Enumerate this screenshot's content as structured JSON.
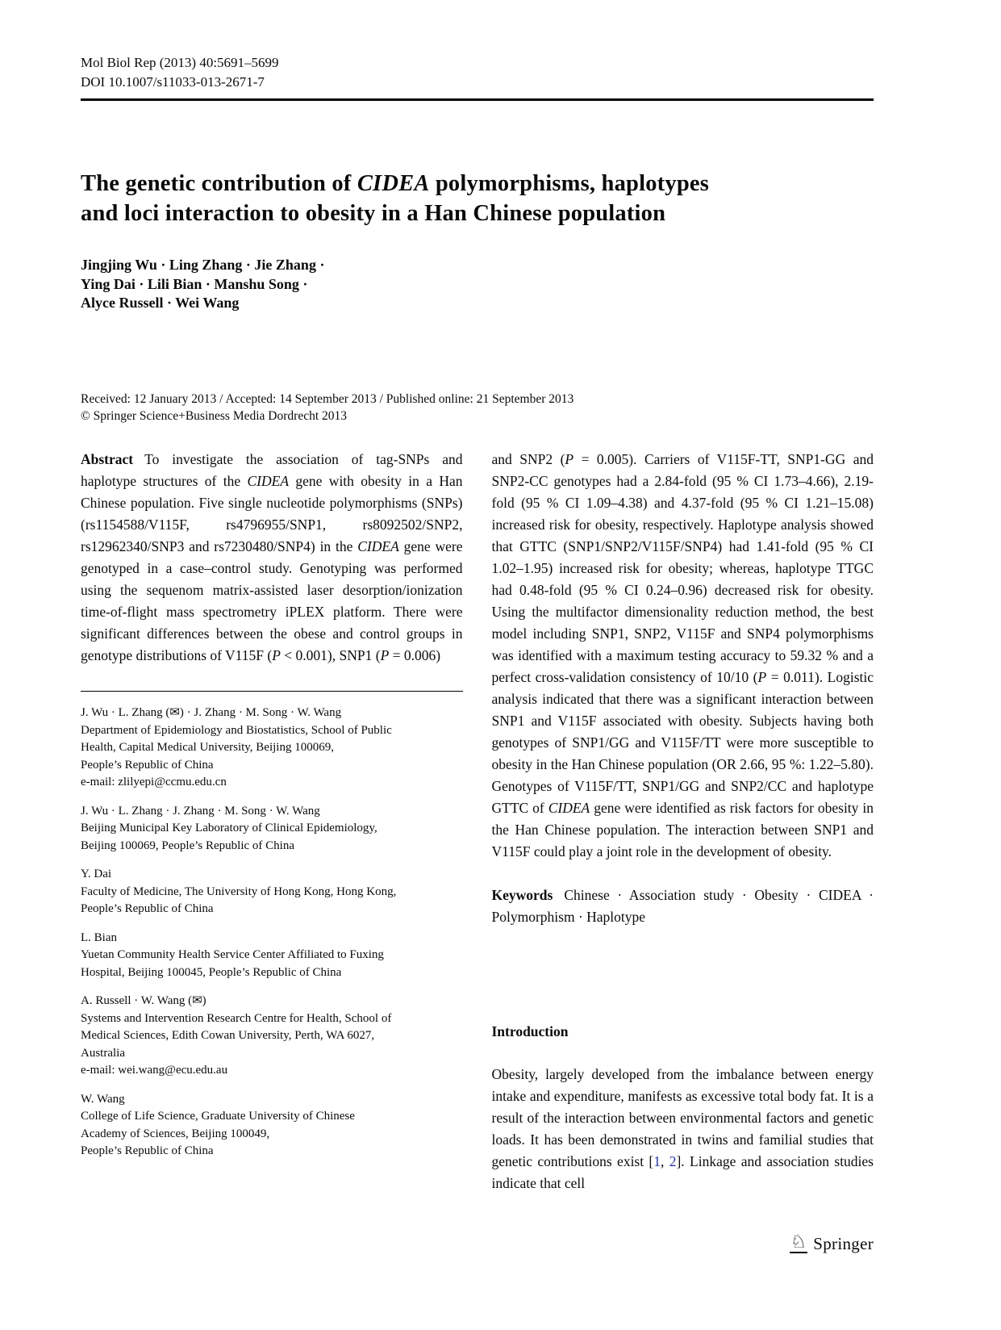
{
  "colors": {
    "citation_link": "#2333a8",
    "text": "#0b0b0b",
    "rule": "#000000"
  },
  "icons": {
    "corresponding_author_icon": "✉",
    "springer_knight_icon": "♘"
  },
  "header": {
    "journal_line": "Mol Biol Rep (2013) 40:5691–5699",
    "doi_line": "DOI 10.1007/s11033-013-2671-7"
  },
  "title": {
    "pre": "The genetic contribution of ",
    "italic": "CIDEA",
    "post": " polymorphisms, haplotypes\nand loci interaction to obesity in a Han Chinese population"
  },
  "authors": "Jingjing Wu · Ling Zhang · Jie Zhang ·\nYing Dai · Lili Bian · Manshu Song ·\nAlyce Russell · Wei Wang",
  "dates": {
    "received_line": "Received: 12 January 2013 / Accepted: 14 September 2013 / Published online: 21 September 2013",
    "copyright_line": "© Springer Science+Business Media Dordrecht 2013"
  },
  "abstract": {
    "label": "Abstract",
    "col1_segments": [
      {
        "text": "To investigate the association of tag-SNPs and haplotype structures of the "
      },
      {
        "text": "CIDEA",
        "style": "i"
      },
      {
        "text": " gene with obesity in a Han Chinese population. Five single nucleotide polymorphisms (SNPs) (rs1154588/V115F, rs4796955/SNP1, rs8092502/SNP2, rs12962340/SNP3 and rs7230480/SNP4) in the "
      },
      {
        "text": "CIDEA",
        "style": "i"
      },
      {
        "text": " gene were genotyped in a case–control study. Genotyping was performed using the sequenom matrix-assisted laser desorption/ionization time-of-flight mass spectrometry iPLEX platform. There were significant differences between the obese and control groups in genotype distributions of V115F ("
      },
      {
        "text": "P",
        "style": "i"
      },
      {
        "text": " < 0.001), SNP1 ("
      },
      {
        "text": "P",
        "style": "i"
      },
      {
        "text": " = 0.006)"
      }
    ],
    "col2_segments": [
      {
        "text": "and SNP2 ("
      },
      {
        "text": "P",
        "style": "i"
      },
      {
        "text": " = 0.005). Carriers of V115F-TT, SNP1-GG and SNP2-CC genotypes had a 2.84-fold (95 % CI 1.73–4.66), 2.19-fold (95 % CI 1.09–4.38) and 4.37-fold (95 % CI 1.21–15.08) increased risk for obesity, respectively. Haplotype analysis showed that GTTC (SNP1/SNP2/V115F/SNP4) had 1.41-fold (95 % CI 1.02–1.95) increased risk for obesity; whereas, haplotype TTGC had 0.48-fold (95 % CI 0.24–0.96) decreased risk for obesity. Using the multifactor dimensionality reduction method, the best model including SNP1, SNP2, V115F and SNP4 polymorphisms was identified with a maximum testing accuracy to 59.32 % and a perfect cross-validation consistency of 10/10 ("
      },
      {
        "text": "P",
        "style": "i"
      },
      {
        "text": " = 0.011). Logistic analysis indicated that there was a significant interaction between SNP1 and V115F associated with obesity. Subjects having both genotypes of SNP1/GG and V115F/TT were more susceptible to obesity in the Han Chinese population (OR 2.66, 95 %: 1.22–5.80). Genotypes of V115F/TT, SNP1/GG and SNP2/CC and haplotype GTTC of "
      },
      {
        "text": "CIDEA",
        "style": "i"
      },
      {
        "text": " gene were identified as risk factors for obesity in the Han Chinese population. The interaction between SNP1 and V115F could play a joint role in the development of obesity."
      }
    ]
  },
  "keywords": {
    "label": "Keywords",
    "text": "Chinese · Association study · Obesity · CIDEA · Polymorphism · Haplotype"
  },
  "affiliations": [
    "J. Wu · L. Zhang (✉) · J. Zhang · M. Song · W. Wang\nDepartment of Epidemiology and Biostatistics, School of Public\nHealth, Capital Medical University, Beijing 100069,\nPeople’s Republic of China\ne-mail: zlilyepi@ccmu.edu.cn",
    "J. Wu · L. Zhang · J. Zhang · M. Song · W. Wang\nBeijing Municipal Key Laboratory of Clinical Epidemiology,\nBeijing 100069, People’s Republic of China",
    "Y. Dai\nFaculty of Medicine, The University of Hong Kong, Hong Kong,\nPeople’s Republic of China",
    "L. Bian\nYuetan Community Health Service Center Affiliated to Fuxing\nHospital, Beijing 100045, People’s Republic of China",
    "A. Russell · W. Wang (✉)\nSystems and Intervention Research Centre for Health, School of\nMedical Sciences, Edith Cowan University, Perth, WA 6027,\nAustralia\ne-mail: wei.wang@ecu.edu.au",
    "W. Wang\nCollege of Life Science, Graduate University of Chinese\nAcademy of Sciences, Beijing 100049,\nPeople’s Republic of China"
  ],
  "introduction": {
    "heading": "Introduction",
    "segments": [
      {
        "text": "Obesity, largely developed from the imbalance between energy intake and expenditure, manifests as excessive total body fat. It is a result of the interaction between environmental factors and genetic loads. It has been demonstrated in twins and familial studies that genetic contributions exist ["
      },
      {
        "text": "1",
        "style": "link"
      },
      {
        "text": ", "
      },
      {
        "text": "2",
        "style": "link"
      },
      {
        "text": "]. Linkage and association studies indicate that cell"
      }
    ]
  },
  "footer": {
    "publisher": "Springer"
  }
}
